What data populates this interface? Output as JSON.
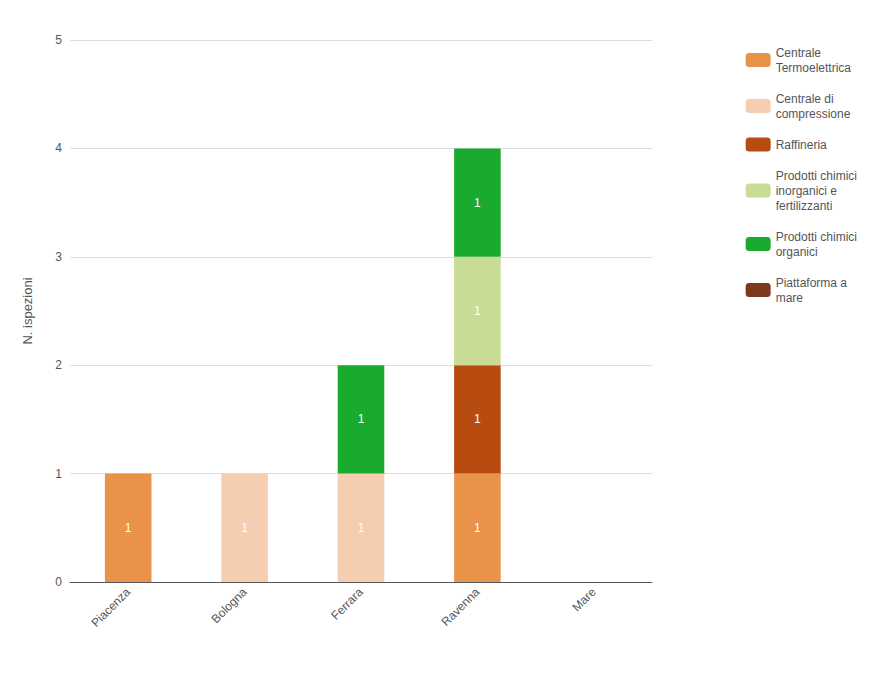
{
  "chart_data": {
    "type": "bar",
    "stacked": true,
    "data_labels": true,
    "categories": [
      "Piacenza",
      "Bologna",
      "Ferrara",
      "Ravenna",
      "Mare"
    ],
    "series": [
      {
        "name": "Centrale\nTermoelettrica",
        "color": "#e8924a",
        "values": [
          1,
          0,
          0,
          1,
          0
        ]
      },
      {
        "name": "Centrale di\ncompressione",
        "color": "#f5cdb0",
        "values": [
          0,
          1,
          1,
          0,
          0
        ]
      },
      {
        "name": "Raffineria",
        "color": "#b84c10",
        "values": [
          0,
          0,
          0,
          1,
          0
        ]
      },
      {
        "name": "Prodotti chimici\ninorganici e\nfertilizzanti",
        "color": "#c8dc96",
        "values": [
          0,
          0,
          0,
          1,
          0
        ]
      },
      {
        "name": "Prodotti chimici\norganici",
        "color": "#1aaa2e",
        "values": [
          0,
          0,
          1,
          1,
          0
        ]
      },
      {
        "name": "Piattaforma a\nmare",
        "color": "#7b3a1e",
        "values": [
          0,
          0,
          0,
          0,
          0
        ]
      }
    ],
    "ylabel": "N. ispezioni",
    "ylim": [
      0,
      5
    ],
    "yticks": [
      0,
      1,
      2,
      3,
      4,
      5
    ],
    "grid": true,
    "legend": "right"
  }
}
